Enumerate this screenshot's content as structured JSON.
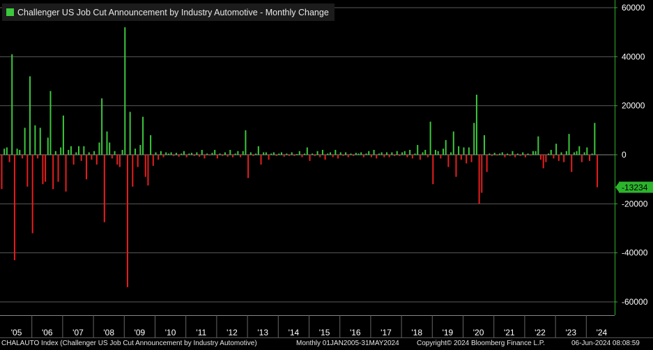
{
  "chart_data": {
    "type": "bar",
    "title": "Challenger US Job Cut Announcement by Industry Automotive - Monthly Change",
    "x_labels": [
      "'05",
      "'06",
      "'07",
      "'08",
      "'09",
      "'10",
      "'11",
      "'12",
      "'13",
      "'14",
      "'15",
      "'16",
      "'17",
      "'18",
      "'19",
      "'20",
      "'21",
      "'22",
      "'23",
      "'24"
    ],
    "y_ticks": [
      60000,
      40000,
      20000,
      0,
      -20000,
      -40000,
      -60000
    ],
    "ylim": [
      -60000,
      60000
    ],
    "last_value_label": "-13234",
    "grid": true,
    "colors": {
      "positive": "#3cc83c",
      "negative": "#e61e1e",
      "axis": "#2db42d",
      "label_bg": "#2db42d"
    },
    "series": [
      {
        "month": "2005-01",
        "value": -14000
      },
      {
        "month": "2005-02",
        "value": 2500
      },
      {
        "month": "2005-03",
        "value": 3000
      },
      {
        "month": "2005-04",
        "value": -3000
      },
      {
        "month": "2005-05",
        "value": 41000
      },
      {
        "month": "2005-06",
        "value": -43000
      },
      {
        "month": "2005-07",
        "value": 2500
      },
      {
        "month": "2005-08",
        "value": 2000
      },
      {
        "month": "2005-09",
        "value": -1500
      },
      {
        "month": "2005-10",
        "value": 11000
      },
      {
        "month": "2005-11",
        "value": -13000
      },
      {
        "month": "2005-12",
        "value": 32000
      },
      {
        "month": "2006-01",
        "value": -32000
      },
      {
        "month": "2006-02",
        "value": 12000
      },
      {
        "month": "2006-03",
        "value": -1500
      },
      {
        "month": "2006-04",
        "value": 11000
      },
      {
        "month": "2006-05",
        "value": -12000
      },
      {
        "month": "2006-06",
        "value": -11000
      },
      {
        "month": "2006-07",
        "value": 7000
      },
      {
        "month": "2006-08",
        "value": 26000
      },
      {
        "month": "2006-09",
        "value": -14000
      },
      {
        "month": "2006-10",
        "value": 1500
      },
      {
        "month": "2006-11",
        "value": -11000
      },
      {
        "month": "2006-12",
        "value": 3000
      },
      {
        "month": "2007-01",
        "value": 16000
      },
      {
        "month": "2007-02",
        "value": -15000
      },
      {
        "month": "2007-03",
        "value": 2000
      },
      {
        "month": "2007-04",
        "value": 3500
      },
      {
        "month": "2007-05",
        "value": -4000
      },
      {
        "month": "2007-06",
        "value": 1000
      },
      {
        "month": "2007-07",
        "value": 3500
      },
      {
        "month": "2007-08",
        "value": -2500
      },
      {
        "month": "2007-09",
        "value": 3500
      },
      {
        "month": "2007-10",
        "value": -10000
      },
      {
        "month": "2007-11",
        "value": 1000
      },
      {
        "month": "2007-12",
        "value": -2000
      },
      {
        "month": "2008-01",
        "value": 1500
      },
      {
        "month": "2008-02",
        "value": -4000
      },
      {
        "month": "2008-03",
        "value": 5000
      },
      {
        "month": "2008-04",
        "value": 23000
      },
      {
        "month": "2008-05",
        "value": -27500
      },
      {
        "month": "2008-06",
        "value": 9500
      },
      {
        "month": "2008-07",
        "value": 5000
      },
      {
        "month": "2008-08",
        "value": -1500
      },
      {
        "month": "2008-09",
        "value": 1500
      },
      {
        "month": "2008-10",
        "value": -4000
      },
      {
        "month": "2008-11",
        "value": -5000
      },
      {
        "month": "2008-12",
        "value": 2000
      },
      {
        "month": "2009-01",
        "value": 52000
      },
      {
        "month": "2009-02",
        "value": -54000
      },
      {
        "month": "2009-03",
        "value": 17500
      },
      {
        "month": "2009-04",
        "value": -13000
      },
      {
        "month": "2009-05",
        "value": 2500
      },
      {
        "month": "2009-06",
        "value": -5000
      },
      {
        "month": "2009-07",
        "value": 4000
      },
      {
        "month": "2009-08",
        "value": 15500
      },
      {
        "month": "2009-09",
        "value": -9000
      },
      {
        "month": "2009-10",
        "value": -12500
      },
      {
        "month": "2009-11",
        "value": 8000
      },
      {
        "month": "2009-12",
        "value": -4500
      },
      {
        "month": "2010-01",
        "value": 1000
      },
      {
        "month": "2010-02",
        "value": -2000
      },
      {
        "month": "2010-03",
        "value": 1500
      },
      {
        "month": "2010-04",
        "value": -1000
      },
      {
        "month": "2010-05",
        "value": 1000
      },
      {
        "month": "2010-06",
        "value": 500
      },
      {
        "month": "2010-07",
        "value": 1000
      },
      {
        "month": "2010-08",
        "value": -500
      },
      {
        "month": "2010-09",
        "value": 800
      },
      {
        "month": "2010-10",
        "value": -800
      },
      {
        "month": "2010-11",
        "value": 500
      },
      {
        "month": "2010-12",
        "value": 1500
      },
      {
        "month": "2011-01",
        "value": -1000
      },
      {
        "month": "2011-02",
        "value": 500
      },
      {
        "month": "2011-03",
        "value": 800
      },
      {
        "month": "2011-04",
        "value": -500
      },
      {
        "month": "2011-05",
        "value": 1000
      },
      {
        "month": "2011-06",
        "value": -800
      },
      {
        "month": "2011-07",
        "value": 2000
      },
      {
        "month": "2011-08",
        "value": -1500
      },
      {
        "month": "2011-09",
        "value": 500
      },
      {
        "month": "2011-10",
        "value": -300
      },
      {
        "month": "2011-11",
        "value": 800
      },
      {
        "month": "2011-12",
        "value": 2000
      },
      {
        "month": "2012-01",
        "value": -1500
      },
      {
        "month": "2012-02",
        "value": 500
      },
      {
        "month": "2012-03",
        "value": -500
      },
      {
        "month": "2012-04",
        "value": 1000
      },
      {
        "month": "2012-05",
        "value": -800
      },
      {
        "month": "2012-06",
        "value": 2000
      },
      {
        "month": "2012-07",
        "value": -1000
      },
      {
        "month": "2012-08",
        "value": 500
      },
      {
        "month": "2012-09",
        "value": 1500
      },
      {
        "month": "2012-10",
        "value": -1000
      },
      {
        "month": "2012-11",
        "value": 1500
      },
      {
        "month": "2012-12",
        "value": 10000
      },
      {
        "month": "2013-01",
        "value": -9500
      },
      {
        "month": "2013-02",
        "value": 1000
      },
      {
        "month": "2013-03",
        "value": -500
      },
      {
        "month": "2013-04",
        "value": 500
      },
      {
        "month": "2013-05",
        "value": 3500
      },
      {
        "month": "2013-06",
        "value": -4000
      },
      {
        "month": "2013-07",
        "value": 1000
      },
      {
        "month": "2013-08",
        "value": 1000
      },
      {
        "month": "2013-09",
        "value": -2000
      },
      {
        "month": "2013-10",
        "value": 500
      },
      {
        "month": "2013-11",
        "value": 1000
      },
      {
        "month": "2013-12",
        "value": -500
      },
      {
        "month": "2014-01",
        "value": 500
      },
      {
        "month": "2014-02",
        "value": 1000
      },
      {
        "month": "2014-03",
        "value": -800
      },
      {
        "month": "2014-04",
        "value": 500
      },
      {
        "month": "2014-05",
        "value": -500
      },
      {
        "month": "2014-06",
        "value": 1000
      },
      {
        "month": "2014-07",
        "value": -500
      },
      {
        "month": "2014-08",
        "value": 300
      },
      {
        "month": "2014-09",
        "value": 1500
      },
      {
        "month": "2014-10",
        "value": -1000
      },
      {
        "month": "2014-11",
        "value": 500
      },
      {
        "month": "2014-12",
        "value": 3000
      },
      {
        "month": "2015-01",
        "value": -2500
      },
      {
        "month": "2015-02",
        "value": 500
      },
      {
        "month": "2015-03",
        "value": -500
      },
      {
        "month": "2015-04",
        "value": 1500
      },
      {
        "month": "2015-05",
        "value": -1000
      },
      {
        "month": "2015-06",
        "value": 2000
      },
      {
        "month": "2015-07",
        "value": -2000
      },
      {
        "month": "2015-08",
        "value": 500
      },
      {
        "month": "2015-09",
        "value": 1000
      },
      {
        "month": "2015-10",
        "value": -1000
      },
      {
        "month": "2015-11",
        "value": 2000
      },
      {
        "month": "2015-12",
        "value": -1500
      },
      {
        "month": "2016-01",
        "value": 1000
      },
      {
        "month": "2016-02",
        "value": -500
      },
      {
        "month": "2016-03",
        "value": 1000
      },
      {
        "month": "2016-04",
        "value": -1000
      },
      {
        "month": "2016-05",
        "value": 500
      },
      {
        "month": "2016-06",
        "value": -500
      },
      {
        "month": "2016-07",
        "value": 800
      },
      {
        "month": "2016-08",
        "value": 500
      },
      {
        "month": "2016-09",
        "value": 1000
      },
      {
        "month": "2016-10",
        "value": -1000
      },
      {
        "month": "2016-11",
        "value": 500
      },
      {
        "month": "2016-12",
        "value": 1500
      },
      {
        "month": "2017-01",
        "value": -1000
      },
      {
        "month": "2017-02",
        "value": 2000
      },
      {
        "month": "2017-03",
        "value": -1500
      },
      {
        "month": "2017-04",
        "value": 500
      },
      {
        "month": "2017-05",
        "value": 1000
      },
      {
        "month": "2017-06",
        "value": -1000
      },
      {
        "month": "2017-07",
        "value": 1000
      },
      {
        "month": "2017-08",
        "value": -1000
      },
      {
        "month": "2017-09",
        "value": 1000
      },
      {
        "month": "2017-10",
        "value": -500
      },
      {
        "month": "2017-11",
        "value": 1500
      },
      {
        "month": "2017-12",
        "value": -500
      },
      {
        "month": "2018-01",
        "value": 1000
      },
      {
        "month": "2018-02",
        "value": 1500
      },
      {
        "month": "2018-03",
        "value": -1000
      },
      {
        "month": "2018-04",
        "value": 2000
      },
      {
        "month": "2018-05",
        "value": -1500
      },
      {
        "month": "2018-06",
        "value": 500
      },
      {
        "month": "2018-07",
        "value": 4000
      },
      {
        "month": "2018-08",
        "value": -2000
      },
      {
        "month": "2018-09",
        "value": 1000
      },
      {
        "month": "2018-10",
        "value": 2000
      },
      {
        "month": "2018-11",
        "value": -1000
      },
      {
        "month": "2018-12",
        "value": 13500
      },
      {
        "month": "2019-01",
        "value": -12000
      },
      {
        "month": "2019-02",
        "value": 2000
      },
      {
        "month": "2019-03",
        "value": 1500
      },
      {
        "month": "2019-04",
        "value": -1500
      },
      {
        "month": "2019-05",
        "value": 2500
      },
      {
        "month": "2019-06",
        "value": 6000
      },
      {
        "month": "2019-07",
        "value": -5000
      },
      {
        "month": "2019-08",
        "value": 1000
      },
      {
        "month": "2019-09",
        "value": 9500
      },
      {
        "month": "2019-10",
        "value": -9000
      },
      {
        "month": "2019-11",
        "value": 3500
      },
      {
        "month": "2019-12",
        "value": -2000
      },
      {
        "month": "2020-01",
        "value": 3000
      },
      {
        "month": "2020-02",
        "value": -3500
      },
      {
        "month": "2020-03",
        "value": 3000
      },
      {
        "month": "2020-04",
        "value": -3000
      },
      {
        "month": "2020-05",
        "value": 13000
      },
      {
        "month": "2020-06",
        "value": 24500
      },
      {
        "month": "2020-07",
        "value": -20000
      },
      {
        "month": "2020-08",
        "value": -15500
      },
      {
        "month": "2020-09",
        "value": 8000
      },
      {
        "month": "2020-10",
        "value": -7000
      },
      {
        "month": "2020-11",
        "value": 500
      },
      {
        "month": "2020-12",
        "value": -500
      },
      {
        "month": "2021-01",
        "value": 800
      },
      {
        "month": "2021-02",
        "value": -300
      },
      {
        "month": "2021-03",
        "value": 500
      },
      {
        "month": "2021-04",
        "value": 1000
      },
      {
        "month": "2021-05",
        "value": -1000
      },
      {
        "month": "2021-06",
        "value": 500
      },
      {
        "month": "2021-07",
        "value": -500
      },
      {
        "month": "2021-08",
        "value": 1500
      },
      {
        "month": "2021-09",
        "value": -1000
      },
      {
        "month": "2021-10",
        "value": 500
      },
      {
        "month": "2021-11",
        "value": -500
      },
      {
        "month": "2021-12",
        "value": 1000
      },
      {
        "month": "2022-01",
        "value": -1000
      },
      {
        "month": "2022-02",
        "value": 500
      },
      {
        "month": "2022-03",
        "value": -300
      },
      {
        "month": "2022-04",
        "value": 1500
      },
      {
        "month": "2022-05",
        "value": 1500
      },
      {
        "month": "2022-06",
        "value": 7500
      },
      {
        "month": "2022-07",
        "value": -2000
      },
      {
        "month": "2022-08",
        "value": -5500
      },
      {
        "month": "2022-09",
        "value": -3000
      },
      {
        "month": "2022-10",
        "value": 500
      },
      {
        "month": "2022-11",
        "value": 2000
      },
      {
        "month": "2022-12",
        "value": -1500
      },
      {
        "month": "2023-01",
        "value": 4500
      },
      {
        "month": "2023-02",
        "value": -2500
      },
      {
        "month": "2023-03",
        "value": 1000
      },
      {
        "month": "2023-04",
        "value": -3000
      },
      {
        "month": "2023-05",
        "value": 1500
      },
      {
        "month": "2023-06",
        "value": 8500
      },
      {
        "month": "2023-07",
        "value": -7000
      },
      {
        "month": "2023-08",
        "value": 1000
      },
      {
        "month": "2023-09",
        "value": 1500
      },
      {
        "month": "2023-10",
        "value": 3500
      },
      {
        "month": "2023-11",
        "value": -3000
      },
      {
        "month": "2023-12",
        "value": 1000
      },
      {
        "month": "2024-01",
        "value": 3000
      },
      {
        "month": "2024-02",
        "value": -2500
      },
      {
        "month": "2024-03",
        "value": 500
      },
      {
        "month": "2024-04",
        "value": 13000
      },
      {
        "month": "2024-05",
        "value": -13234
      }
    ]
  },
  "footer": {
    "ticker": "CHALAUTO Index (Challenger US Job Cut Announcement by Industry Automotive)",
    "period": "Monthly 01JAN2005-31MAY2024",
    "copyright": "Copyright© 2024 Bloomberg Finance L.P.",
    "timestamp": "06-Jun-2024 08:08:59"
  }
}
